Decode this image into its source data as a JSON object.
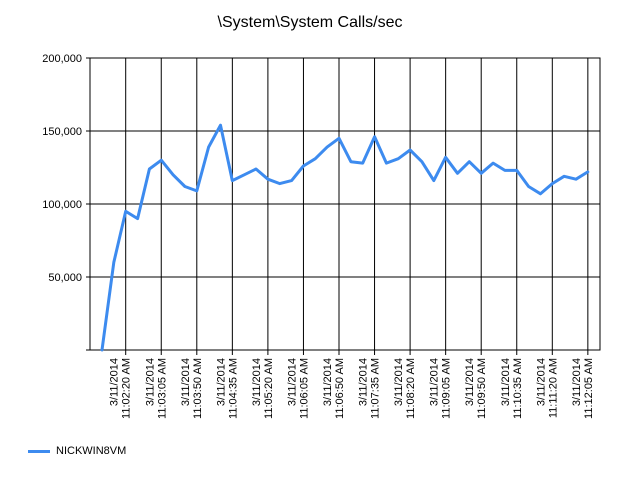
{
  "chart_data": {
    "type": "line",
    "title": "\\System\\System Calls/sec",
    "ylim": [
      0,
      200000
    ],
    "y_ticks": [
      {
        "value": 50000,
        "label": "50,000"
      },
      {
        "value": 100000,
        "label": "100,000"
      },
      {
        "value": 150000,
        "label": "150,000"
      },
      {
        "value": 200000,
        "label": "200,000"
      }
    ],
    "x_ticks": [
      {
        "index": 2,
        "date": "3/11/2014",
        "time": "11:02:20 AM"
      },
      {
        "index": 5,
        "date": "3/11/2014",
        "time": "11:03:05 AM"
      },
      {
        "index": 8,
        "date": "3/11/2014",
        "time": "11:03:50 AM"
      },
      {
        "index": 11,
        "date": "3/11/2014",
        "time": "11:04:35 AM"
      },
      {
        "index": 14,
        "date": "3/11/2014",
        "time": "11:05:20 AM"
      },
      {
        "index": 17,
        "date": "3/11/2014",
        "time": "11:06:05 AM"
      },
      {
        "index": 20,
        "date": "3/11/2014",
        "time": "11:06:50 AM"
      },
      {
        "index": 23,
        "date": "3/11/2014",
        "time": "11:07:35 AM"
      },
      {
        "index": 26,
        "date": "3/11/2014",
        "time": "11:08:20 AM"
      },
      {
        "index": 29,
        "date": "3/11/2014",
        "time": "11:09:05 AM"
      },
      {
        "index": 32,
        "date": "3/11/2014",
        "time": "11:09:50 AM"
      },
      {
        "index": 35,
        "date": "3/11/2014",
        "time": "11:10:35 AM"
      },
      {
        "index": 38,
        "date": "3/11/2014",
        "time": "11:11:20 AM"
      },
      {
        "index": 41,
        "date": "3/11/2014",
        "time": "11:12:05 AM"
      }
    ],
    "series": [
      {
        "name": "NICKWIN8VM",
        "color": "#3d8bef",
        "values": [
          0,
          60000,
          95000,
          90000,
          124000,
          130000,
          120000,
          112000,
          109000,
          139000,
          154000,
          116000,
          120000,
          124000,
          117000,
          114000,
          116000,
          126000,
          131000,
          139000,
          145000,
          129000,
          128000,
          146000,
          128000,
          131000,
          137000,
          129000,
          116000,
          132000,
          121000,
          129000,
          121000,
          128000,
          123000,
          123000,
          112000,
          107000,
          114000,
          119000,
          117000,
          122000
        ]
      }
    ],
    "grid": true,
    "legend_position": "bottom-left"
  }
}
